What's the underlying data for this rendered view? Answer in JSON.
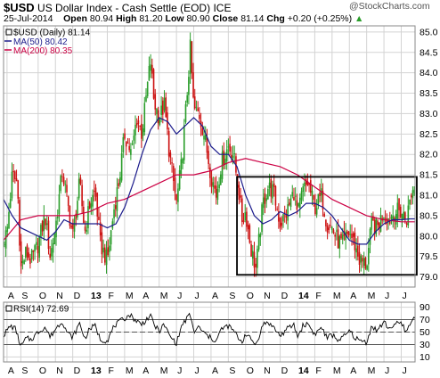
{
  "header": {
    "symbol": "$USD",
    "name": "US Dollar Index - Cash Settle (EOD)",
    "exchange": "ICE",
    "date": "25-Jul-2014",
    "open_label": "Open",
    "open": "80.94",
    "high_label": "High",
    "high": "81.20",
    "low_label": "Low",
    "low": "80.90",
    "close_label": "Close",
    "close": "81.14",
    "chg_label": "Chg",
    "chg": "+0.20 (+0.25%)",
    "chg_arrow": "▲",
    "brand": "@StockCharts.com"
  },
  "colors": {
    "price_up": "#2a9d2a",
    "price_down": "#cc1111",
    "ma50": "#1c1c8c",
    "ma200": "#cc0044",
    "rsi": "#000000",
    "grid": "#d3d3d3"
  },
  "chart_data": [
    {
      "type": "candlestick",
      "title": "$USD (Daily) 81.14",
      "legend": [
        {
          "label": "$USD (Daily) 81.14",
          "icon": "candle-icon"
        },
        {
          "label": "MA(50) 80.42",
          "color": "#1c1c8c"
        },
        {
          "label": "MA(200) 80.35",
          "color": "#cc0044"
        }
      ],
      "y_ticks": [
        "85.0",
        "84.5",
        "84.0",
        "83.5",
        "83.0",
        "82.5",
        "82.0",
        "81.5",
        "81.0",
        "80.5",
        "80.0",
        "79.5",
        "79.0"
      ],
      "ylim": [
        78.75,
        85.15
      ],
      "x_labels": [
        "A",
        "S",
        "O",
        "N",
        "D",
        "13",
        "F",
        "M",
        "A",
        "M",
        "J",
        "J",
        "A",
        "S",
        "O",
        "N",
        "D",
        "14",
        "F",
        "M",
        "A",
        "M",
        "J",
        "J"
      ],
      "x_positions": [
        0.2,
        1.0,
        2.0,
        3.0,
        4.0,
        5.0,
        6.0,
        7.0,
        8.0,
        9.0,
        10.0,
        11.0,
        12.0,
        13.0,
        14.0,
        15.0,
        16.0,
        17.0,
        18.0,
        19.0,
        20.0,
        21.0,
        22.0,
        23.0
      ],
      "x_range": [
        0,
        23.8
      ],
      "close_path": [
        [
          0,
          79.9
        ],
        [
          0.2,
          80.1
        ],
        [
          0.5,
          81.5
        ],
        [
          0.8,
          81.3
        ],
        [
          1.0,
          79.2
        ],
        [
          1.3,
          79.6
        ],
        [
          1.6,
          79.4
        ],
        [
          2.0,
          79.8
        ],
        [
          2.4,
          80.5
        ],
        [
          2.7,
          79.5
        ],
        [
          3.0,
          80.2
        ],
        [
          3.4,
          81.6
        ],
        [
          3.7,
          80.8
        ],
        [
          4.0,
          80.0
        ],
        [
          4.4,
          81.3
        ],
        [
          4.7,
          80.1
        ],
        [
          5.0,
          80.8
        ],
        [
          5.3,
          81.1
        ],
        [
          5.6,
          79.8
        ],
        [
          6.0,
          79.4
        ],
        [
          6.4,
          80.7
        ],
        [
          6.7,
          81.4
        ],
        [
          7.0,
          82.5
        ],
        [
          7.4,
          82.0
        ],
        [
          7.7,
          82.9
        ],
        [
          8.0,
          82.5
        ],
        [
          8.3,
          83.6
        ],
        [
          8.5,
          84.3
        ],
        [
          8.7,
          83.3
        ],
        [
          9.0,
          82.9
        ],
        [
          9.3,
          83.2
        ],
        [
          9.6,
          82.0
        ],
        [
          10.0,
          80.8
        ],
        [
          10.3,
          81.8
        ],
        [
          10.6,
          83.4
        ],
        [
          10.8,
          84.6
        ],
        [
          11.0,
          83.1
        ],
        [
          11.3,
          83.0
        ],
        [
          11.6,
          82.5
        ],
        [
          12.0,
          81.5
        ],
        [
          12.3,
          81.0
        ],
        [
          12.6,
          81.8
        ],
        [
          13.0,
          82.2
        ],
        [
          13.3,
          82.0
        ],
        [
          13.6,
          81.1
        ],
        [
          13.8,
          80.4
        ],
        [
          14.0,
          80.6
        ],
        [
          14.3,
          79.7
        ],
        [
          14.6,
          79.2
        ],
        [
          15.0,
          80.8
        ],
        [
          15.3,
          81.2
        ],
        [
          15.6,
          81.1
        ],
        [
          16.0,
          80.3
        ],
        [
          16.4,
          80.6
        ],
        [
          16.8,
          81.1
        ],
        [
          17.0,
          80.5
        ],
        [
          17.3,
          81.1
        ],
        [
          17.6,
          81.3
        ],
        [
          18.0,
          80.7
        ],
        [
          18.4,
          81.0
        ],
        [
          18.7,
          80.3
        ],
        [
          19.0,
          80.2
        ],
        [
          19.3,
          79.9
        ],
        [
          19.6,
          79.8
        ],
        [
          20.0,
          80.1
        ],
        [
          20.3,
          79.8
        ],
        [
          20.6,
          79.4
        ],
        [
          21.0,
          79.3
        ],
        [
          21.3,
          80.3
        ],
        [
          21.6,
          80.2
        ],
        [
          22.0,
          80.6
        ],
        [
          22.3,
          80.4
        ],
        [
          22.6,
          80.6
        ],
        [
          23.0,
          80.6
        ],
        [
          23.3,
          80.4
        ],
        [
          23.6,
          81.1
        ],
        [
          23.8,
          81.14
        ]
      ],
      "ma50": [
        [
          0,
          80.9
        ],
        [
          0.5,
          80.5
        ],
        [
          1.0,
          80.2
        ],
        [
          1.5,
          80.1
        ],
        [
          2.0,
          80.0
        ],
        [
          2.5,
          79.9
        ],
        [
          3.0,
          80.1
        ],
        [
          3.5,
          80.4
        ],
        [
          4.0,
          80.3
        ],
        [
          4.5,
          80.3
        ],
        [
          5.0,
          80.3
        ],
        [
          5.5,
          80.3
        ],
        [
          6.0,
          80.2
        ],
        [
          6.5,
          80.3
        ],
        [
          7.0,
          80.7
        ],
        [
          7.5,
          81.3
        ],
        [
          8.0,
          82.0
        ],
        [
          8.5,
          82.6
        ],
        [
          9.0,
          82.9
        ],
        [
          9.5,
          82.8
        ],
        [
          10.0,
          82.5
        ],
        [
          10.5,
          82.7
        ],
        [
          11.0,
          82.9
        ],
        [
          11.5,
          82.7
        ],
        [
          12.0,
          82.2
        ],
        [
          12.5,
          82.0
        ],
        [
          13.0,
          82.0
        ],
        [
          13.5,
          81.7
        ],
        [
          14.0,
          81.0
        ],
        [
          14.5,
          80.5
        ],
        [
          15.0,
          80.3
        ],
        [
          15.5,
          80.4
        ],
        [
          16.0,
          80.6
        ],
        [
          16.5,
          80.5
        ],
        [
          17.0,
          80.6
        ],
        [
          17.5,
          80.8
        ],
        [
          18.0,
          80.8
        ],
        [
          18.5,
          80.7
        ],
        [
          19.0,
          80.5
        ],
        [
          19.5,
          80.2
        ],
        [
          20.0,
          79.9
        ],
        [
          20.5,
          79.8
        ],
        [
          21.0,
          79.8
        ],
        [
          21.5,
          80.1
        ],
        [
          22.0,
          80.3
        ],
        [
          22.5,
          80.4
        ],
        [
          23.0,
          80.4
        ],
        [
          23.5,
          80.42
        ],
        [
          23.8,
          80.42
        ]
      ],
      "ma200": [
        [
          0,
          79.9
        ],
        [
          1,
          80.4
        ],
        [
          2,
          80.5
        ],
        [
          3,
          80.5
        ],
        [
          4,
          80.5
        ],
        [
          5,
          80.6
        ],
        [
          6,
          80.8
        ],
        [
          7,
          80.9
        ],
        [
          8,
          81.1
        ],
        [
          9,
          81.3
        ],
        [
          10,
          81.5
        ],
        [
          11,
          81.5
        ],
        [
          12,
          81.6
        ],
        [
          13,
          81.8
        ],
        [
          14,
          81.9
        ],
        [
          15,
          81.8
        ],
        [
          16,
          81.7
        ],
        [
          17,
          81.5
        ],
        [
          18,
          81.2
        ],
        [
          19,
          80.9
        ],
        [
          20,
          80.7
        ],
        [
          21,
          80.5
        ],
        [
          22,
          80.4
        ],
        [
          23,
          80.35
        ],
        [
          23.8,
          80.35
        ]
      ],
      "annotation": {
        "shape": "rectangle",
        "x_range": [
          13.5,
          23.9
        ],
        "y_range": [
          79.05,
          81.45
        ]
      }
    },
    {
      "type": "line",
      "title": "RSI(14) 72.69",
      "y_ticks": [
        "90",
        "70",
        "50",
        "30",
        "10"
      ],
      "ylim": [
        2,
        98
      ],
      "reference_lines": [
        70,
        50,
        30
      ],
      "x_labels": [
        "A",
        "S",
        "O",
        "N",
        "D",
        "13",
        "F",
        "M",
        "A",
        "M",
        "J",
        "J",
        "A",
        "S",
        "O",
        "N",
        "D",
        "14",
        "F",
        "M",
        "A",
        "M",
        "J",
        "J"
      ],
      "x_positions": [
        0.2,
        1.0,
        2.0,
        3.0,
        4.0,
        5.0,
        6.0,
        7.0,
        8.0,
        9.0,
        10.0,
        11.0,
        12.0,
        13.0,
        14.0,
        15.0,
        16.0,
        17.0,
        18.0,
        19.0,
        20.0,
        21.0,
        22.0,
        23.0
      ],
      "x_range": [
        0,
        23.8
      ],
      "points": [
        [
          0,
          45
        ],
        [
          0.4,
          60
        ],
        [
          0.7,
          55
        ],
        [
          1.0,
          26
        ],
        [
          1.3,
          40
        ],
        [
          1.6,
          38
        ],
        [
          2.0,
          50
        ],
        [
          2.4,
          58
        ],
        [
          2.7,
          42
        ],
        [
          3.0,
          55
        ],
        [
          3.4,
          68
        ],
        [
          3.7,
          48
        ],
        [
          4.0,
          42
        ],
        [
          4.4,
          64
        ],
        [
          4.7,
          40
        ],
        [
          5.0,
          56
        ],
        [
          5.3,
          60
        ],
        [
          5.6,
          38
        ],
        [
          6.0,
          36
        ],
        [
          6.4,
          60
        ],
        [
          6.7,
          66
        ],
        [
          7.0,
          72
        ],
        [
          7.3,
          78
        ],
        [
          7.6,
          70
        ],
        [
          8.0,
          62
        ],
        [
          8.3,
          72
        ],
        [
          8.5,
          75
        ],
        [
          8.8,
          58
        ],
        [
          9.0,
          52
        ],
        [
          9.3,
          62
        ],
        [
          9.6,
          44
        ],
        [
          10.0,
          32
        ],
        [
          10.3,
          60
        ],
        [
          10.6,
          72
        ],
        [
          10.8,
          78
        ],
        [
          11.0,
          50
        ],
        [
          11.3,
          58
        ],
        [
          11.6,
          48
        ],
        [
          12.0,
          40
        ],
        [
          12.3,
          36
        ],
        [
          12.6,
          55
        ],
        [
          13.0,
          60
        ],
        [
          13.3,
          52
        ],
        [
          13.6,
          40
        ],
        [
          13.8,
          34
        ],
        [
          14.0,
          48
        ],
        [
          14.3,
          38
        ],
        [
          14.6,
          30
        ],
        [
          15.0,
          62
        ],
        [
          15.3,
          66
        ],
        [
          15.6,
          58
        ],
        [
          16.0,
          44
        ],
        [
          16.4,
          55
        ],
        [
          16.8,
          62
        ],
        [
          17.0,
          42
        ],
        [
          17.3,
          60
        ],
        [
          17.6,
          64
        ],
        [
          18.0,
          46
        ],
        [
          18.4,
          58
        ],
        [
          18.7,
          40
        ],
        [
          19.0,
          46
        ],
        [
          19.3,
          38
        ],
        [
          19.6,
          40
        ],
        [
          20.0,
          52
        ],
        [
          20.3,
          42
        ],
        [
          20.6,
          36
        ],
        [
          21.0,
          34
        ],
        [
          21.3,
          60
        ],
        [
          21.6,
          52
        ],
        [
          22.0,
          66
        ],
        [
          22.3,
          56
        ],
        [
          22.6,
          62
        ],
        [
          23.0,
          64
        ],
        [
          23.3,
          50
        ],
        [
          23.6,
          68
        ],
        [
          23.8,
          72.69
        ]
      ]
    }
  ]
}
